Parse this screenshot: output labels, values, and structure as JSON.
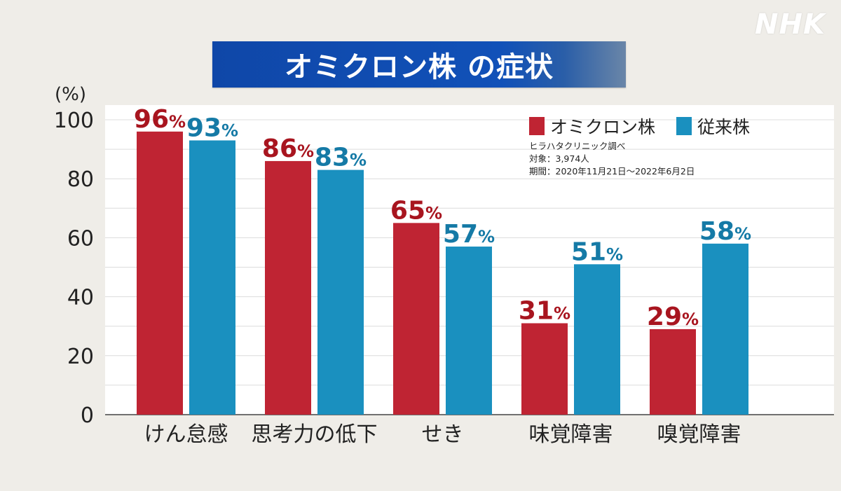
{
  "logo": "NHK",
  "title": "オミクロン株 の症状",
  "colors": {
    "omicron": "#bf2433",
    "conventional": "#1a90bf",
    "banner": "#0f47a8"
  },
  "notes": {
    "source": "ヒラハタクリニック調べ",
    "target": "対象：3,974人",
    "period": "期間：2020年11月21日～2022年6月2日"
  },
  "chart_data": {
    "type": "bar",
    "title": "オミクロン株 の症状",
    "ylabel": "(%)",
    "xlabel": "",
    "ylim": [
      0,
      100
    ],
    "yticks": [
      "0",
      "20",
      "40",
      "60",
      "80",
      "100"
    ],
    "categories": [
      "けん怠感",
      "思考力の低下",
      "せき",
      "味覚障害",
      "嗅覚障害"
    ],
    "series": [
      {
        "name": "オミクロン株",
        "values": [
          96,
          86,
          65,
          31,
          29
        ],
        "labels": [
          "96",
          "86",
          "65",
          "31",
          "29"
        ]
      },
      {
        "name": "従来株",
        "values": [
          93,
          83,
          57,
          51,
          58
        ],
        "labels": [
          "93",
          "83",
          "57",
          "51",
          "58"
        ]
      }
    ],
    "value_suffix": "%",
    "grid": true,
    "legend": "top-right"
  }
}
